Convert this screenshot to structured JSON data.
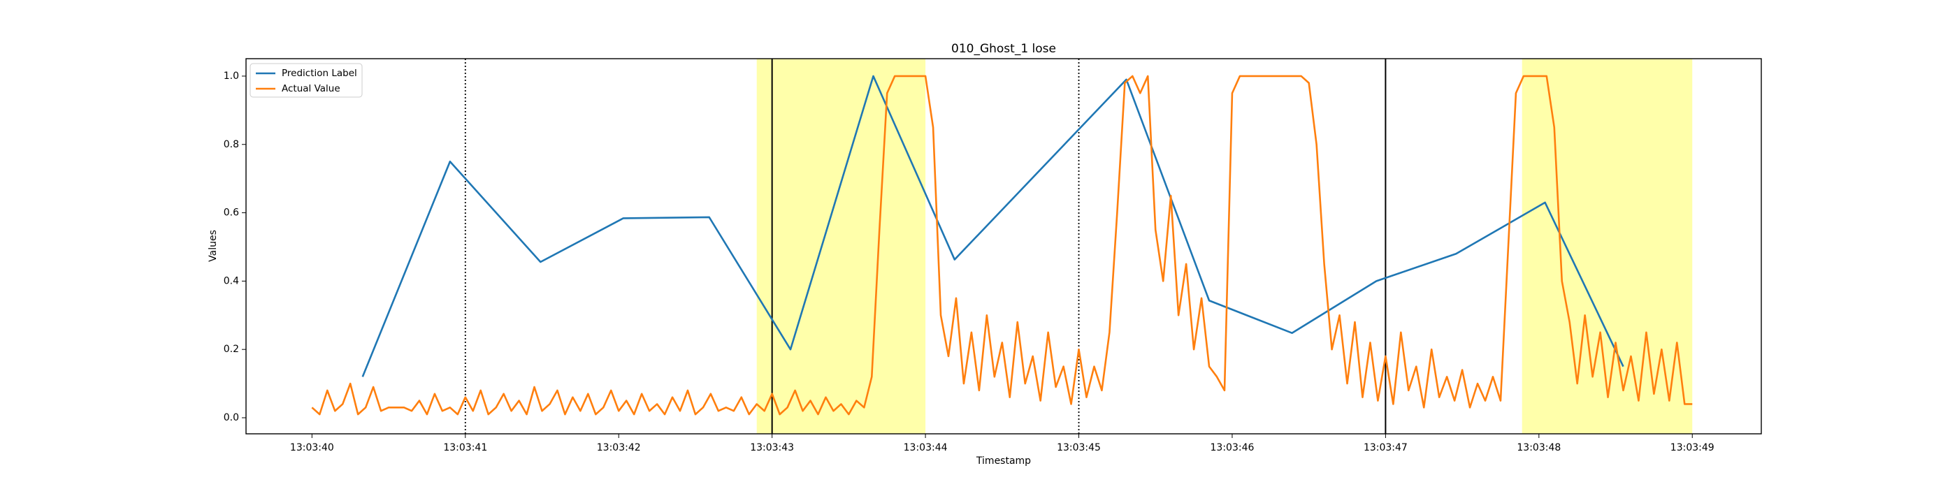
{
  "chart_data": {
    "type": "line",
    "title": "010_Ghost_1 lose",
    "x_label": "Timestamp",
    "y_label": "Values",
    "xlim": [
      39.57,
      49.45
    ],
    "ylim": [
      -0.047,
      1.051
    ],
    "xticks": [
      {
        "value": 40,
        "label": "13:03:40"
      },
      {
        "value": 41,
        "label": "13:03:41"
      },
      {
        "value": 42,
        "label": "13:03:42"
      },
      {
        "value": 43,
        "label": "13:03:43"
      },
      {
        "value": 44,
        "label": "13:03:44"
      },
      {
        "value": 45,
        "label": "13:03:45"
      },
      {
        "value": 46,
        "label": "13:03:46"
      },
      {
        "value": 47,
        "label": "13:03:47"
      },
      {
        "value": 48,
        "label": "13:03:48"
      },
      {
        "value": 49,
        "label": "13:03:49"
      }
    ],
    "yticks": [
      {
        "value": 0,
        "label": "0.0"
      },
      {
        "value": 0.2,
        "label": "0.2"
      },
      {
        "value": 0.4,
        "label": "0.4"
      },
      {
        "value": 0.6,
        "label": "0.6"
      },
      {
        "value": 0.8,
        "label": "0.8"
      },
      {
        "value": 1,
        "label": "1.0"
      }
    ],
    "grid": false,
    "legend": "upper left",
    "spans": [
      [
        42.9,
        44.0
      ],
      [
        47.89,
        49.0
      ]
    ],
    "span_color": "#ffffaa",
    "vlines": [
      {
        "x": 41,
        "style": "dotted"
      },
      {
        "x": 43,
        "style": "solid"
      },
      {
        "x": 45,
        "style": "dotted"
      },
      {
        "x": 47,
        "style": "solid"
      }
    ],
    "series": [
      {
        "name": "Prediction Label",
        "color": "#1f77b4",
        "x": [
          40.33,
          40.9,
          41.49,
          42.03,
          42.59,
          43.12,
          43.66,
          44.19,
          45.31,
          45.85,
          46.39,
          46.94,
          47.46,
          48.04,
          48.55
        ],
        "values": [
          0.12,
          0.75,
          0.456,
          0.584,
          0.587,
          0.2,
          1.0,
          0.463,
          0.99,
          0.343,
          0.248,
          0.4,
          0.48,
          0.63,
          0.15
        ]
      },
      {
        "name": "Actual Value",
        "color": "#ff7f0e",
        "x": [
          40.0,
          40.05,
          40.1,
          40.15,
          40.2,
          40.25,
          40.3,
          40.35,
          40.4,
          40.45,
          40.5,
          40.55,
          40.6,
          40.65,
          40.7,
          40.75,
          40.8,
          40.85,
          40.9,
          40.95,
          41.0,
          41.05,
          41.1,
          41.15,
          41.2,
          41.25,
          41.3,
          41.35,
          41.4,
          41.45,
          41.5,
          41.55,
          41.6,
          41.65,
          41.7,
          41.75,
          41.8,
          41.85,
          41.9,
          41.95,
          42.0,
          42.05,
          42.1,
          42.15,
          42.2,
          42.25,
          42.3,
          42.35,
          42.4,
          42.45,
          42.5,
          42.55,
          42.6,
          42.65,
          42.7,
          42.75,
          42.8,
          42.85,
          42.9,
          42.95,
          43.0,
          43.05,
          43.1,
          43.15,
          43.2,
          43.25,
          43.3,
          43.35,
          43.4,
          43.45,
          43.5,
          43.55,
          43.6,
          43.65,
          43.7,
          43.75,
          43.8,
          43.85,
          43.9,
          43.95,
          44.0,
          44.05,
          44.1,
          44.15,
          44.2,
          44.25,
          44.3,
          44.35,
          44.4,
          44.45,
          44.5,
          44.55,
          44.6,
          44.65,
          44.7,
          44.75,
          44.8,
          44.85,
          44.9,
          44.95,
          45.0,
          45.05,
          45.1,
          45.15,
          45.2,
          45.25,
          45.3,
          45.35,
          45.4,
          45.45,
          45.5,
          45.55,
          45.6,
          45.65,
          45.7,
          45.75,
          45.8,
          45.85,
          45.9,
          45.95,
          46.0,
          46.05,
          46.1,
          46.15,
          46.2,
          46.25,
          46.3,
          46.35,
          46.4,
          46.45,
          46.5,
          46.55,
          46.6,
          46.65,
          46.7,
          46.75,
          46.8,
          46.85,
          46.9,
          46.95,
          47.0,
          47.05,
          47.1,
          47.15,
          47.2,
          47.25,
          47.3,
          47.35,
          47.4,
          47.45,
          47.5,
          47.55,
          47.6,
          47.65,
          47.7,
          47.75,
          47.8,
          47.85,
          47.9,
          47.95,
          48.0,
          48.05,
          48.1,
          48.15,
          48.2,
          48.25,
          48.3,
          48.35,
          48.4,
          48.45,
          48.5,
          48.55,
          48.6,
          48.65,
          48.7,
          48.75,
          48.8,
          48.85,
          48.9,
          48.95,
          49.0
        ],
        "values": [
          0.03,
          0.01,
          0.08,
          0.02,
          0.04,
          0.1,
          0.01,
          0.03,
          0.09,
          0.02,
          0.03,
          0.03,
          0.03,
          0.02,
          0.05,
          0.01,
          0.07,
          0.02,
          0.03,
          0.01,
          0.06,
          0.02,
          0.08,
          0.01,
          0.03,
          0.07,
          0.02,
          0.05,
          0.01,
          0.09,
          0.02,
          0.04,
          0.08,
          0.01,
          0.06,
          0.02,
          0.07,
          0.01,
          0.03,
          0.08,
          0.02,
          0.05,
          0.01,
          0.07,
          0.02,
          0.04,
          0.01,
          0.06,
          0.02,
          0.08,
          0.01,
          0.03,
          0.07,
          0.02,
          0.03,
          0.02,
          0.06,
          0.01,
          0.04,
          0.02,
          0.07,
          0.01,
          0.03,
          0.08,
          0.02,
          0.05,
          0.01,
          0.06,
          0.02,
          0.04,
          0.01,
          0.05,
          0.03,
          0.12,
          0.55,
          0.95,
          1.0,
          1.0,
          1.0,
          1.0,
          1.0,
          0.85,
          0.3,
          0.18,
          0.35,
          0.1,
          0.25,
          0.08,
          0.3,
          0.12,
          0.22,
          0.06,
          0.28,
          0.1,
          0.18,
          0.05,
          0.25,
          0.09,
          0.15,
          0.04,
          0.2,
          0.06,
          0.15,
          0.08,
          0.25,
          0.6,
          0.98,
          1.0,
          0.95,
          1.0,
          0.55,
          0.4,
          0.65,
          0.3,
          0.45,
          0.2,
          0.35,
          0.15,
          0.12,
          0.08,
          0.95,
          1.0,
          1.0,
          1.0,
          1.0,
          1.0,
          1.0,
          1.0,
          1.0,
          1.0,
          0.98,
          0.8,
          0.45,
          0.2,
          0.3,
          0.1,
          0.28,
          0.06,
          0.22,
          0.05,
          0.18,
          0.04,
          0.25,
          0.08,
          0.15,
          0.03,
          0.2,
          0.06,
          0.12,
          0.05,
          0.14,
          0.03,
          0.1,
          0.05,
          0.12,
          0.05,
          0.5,
          0.95,
          1.0,
          1.0,
          1.0,
          1.0,
          0.85,
          0.4,
          0.28,
          0.1,
          0.3,
          0.12,
          0.25,
          0.06,
          0.22,
          0.08,
          0.18,
          0.05,
          0.25,
          0.07,
          0.2,
          0.05,
          0.22,
          0.04,
          0.04
        ]
      }
    ]
  }
}
